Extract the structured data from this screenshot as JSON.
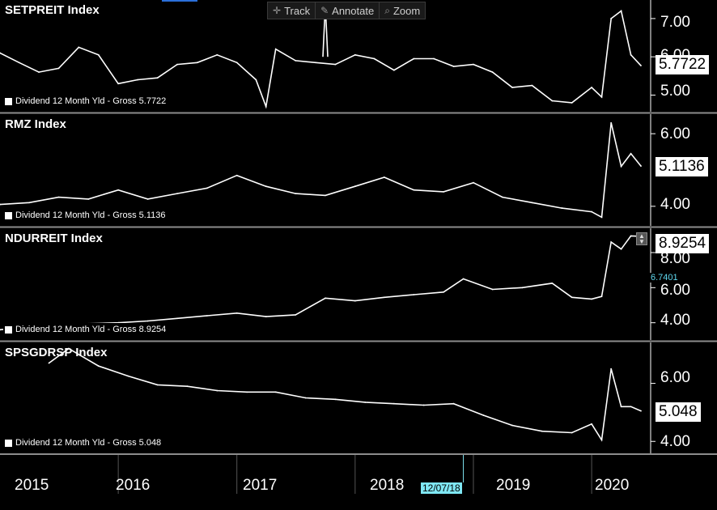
{
  "toolbar": {
    "track": {
      "label": "Track",
      "icon": "crosshair-icon"
    },
    "annotate": {
      "label": "Annotate",
      "icon": "pencil-icon"
    },
    "zoom": {
      "label": "Zoom",
      "icon": "magnifier-icon"
    }
  },
  "cursor": {
    "date": "12/07/18",
    "value": "6.7401"
  },
  "colors": {
    "background": "#000000",
    "line": "#ffffff",
    "cursor": "#7fe7f4",
    "divider": "#8c8c8c"
  },
  "chart_data": [
    {
      "type": "line",
      "title": "SETPREIT Index",
      "legend": "Dividend 12 Month Yld - Gross 5.7722",
      "last_value": "5.7722",
      "yticks": [
        "7.00",
        "6.00",
        "5.00"
      ],
      "ylim": [
        4.65,
        7.4
      ],
      "x": [
        "2015-01",
        "2015-03",
        "2015-05",
        "2015-07",
        "2015-09",
        "2015-11",
        "2016-01",
        "2016-03",
        "2016-05",
        "2016-07",
        "2016-09",
        "2016-11",
        "2017-01",
        "2017-03",
        "2017-04",
        "2017-05",
        "2017-07",
        "2017-09",
        "2017-11",
        "2018-01",
        "2018-03",
        "2018-05",
        "2018-07",
        "2018-09",
        "2018-11",
        "2019-01",
        "2019-03",
        "2019-05",
        "2019-07",
        "2019-09",
        "2019-11",
        "2020-01",
        "2020-02",
        "2020-03",
        "2020-04",
        "2020-05",
        "2020-06"
      ],
      "values": [
        6.1,
        5.85,
        5.6,
        5.7,
        6.25,
        6.05,
        5.3,
        5.4,
        5.45,
        5.8,
        5.85,
        6.05,
        5.85,
        5.4,
        4.7,
        6.2,
        5.9,
        5.85,
        5.8,
        6.05,
        5.95,
        5.65,
        5.95,
        5.95,
        5.75,
        5.8,
        5.6,
        5.2,
        5.25,
        4.85,
        4.8,
        5.2,
        4.95,
        7.0,
        7.2,
        6.05,
        5.77
      ],
      "annotations": [
        {
          "x": "2017-10",
          "value": 7.35
        }
      ]
    },
    {
      "type": "line",
      "title": "RMZ Index",
      "legend": "Dividend 12 Month Yld - Gross 5.1136",
      "last_value": "5.1136",
      "yticks": [
        "6.00",
        "4.00"
      ],
      "ylim": [
        3.55,
        6.45
      ],
      "x": [
        "2015-01",
        "2015-04",
        "2015-07",
        "2015-10",
        "2016-01",
        "2016-04",
        "2016-07",
        "2016-10",
        "2017-01",
        "2017-04",
        "2017-07",
        "2017-10",
        "2018-01",
        "2018-04",
        "2018-07",
        "2018-10",
        "2019-01",
        "2019-04",
        "2019-07",
        "2019-10",
        "2020-01",
        "2020-02",
        "2020-03",
        "2020-04",
        "2020-05",
        "2020-06"
      ],
      "values": [
        4.05,
        4.1,
        4.25,
        4.2,
        4.45,
        4.2,
        4.35,
        4.5,
        4.85,
        4.55,
        4.35,
        4.3,
        4.55,
        4.8,
        4.45,
        4.4,
        4.65,
        4.25,
        4.1,
        3.95,
        3.85,
        3.7,
        6.3,
        5.1,
        5.45,
        5.11
      ]
    },
    {
      "type": "line",
      "title": "NDURREIT Index",
      "legend": "Dividend 12 Month Yld - Gross 8.9254",
      "last_value": "8.9254",
      "yticks": [
        "8.00",
        "6.00",
        "4.00"
      ],
      "ylim": [
        3.2,
        9.2
      ],
      "x": [
        "2015-01",
        "2015-04",
        "2015-07",
        "2015-10",
        "2016-01",
        "2016-04",
        "2016-07",
        "2016-10",
        "2017-01",
        "2017-04",
        "2017-07",
        "2017-10",
        "2018-01",
        "2018-04",
        "2018-07",
        "2018-10",
        "2018-12",
        "2019-03",
        "2019-06",
        "2019-09",
        "2019-11",
        "2020-01",
        "2020-02",
        "2020-03",
        "2020-04",
        "2020-05",
        "2020-06"
      ],
      "values": [
        3.6,
        3.75,
        3.8,
        3.95,
        4.0,
        4.1,
        4.25,
        4.4,
        4.55,
        4.35,
        4.45,
        5.4,
        5.25,
        5.45,
        5.6,
        5.75,
        6.5,
        5.9,
        6.0,
        6.25,
        5.45,
        5.35,
        5.5,
        8.6,
        8.2,
        8.95,
        8.93
      ]
    },
    {
      "type": "line",
      "title": "SPSGDRSP Index",
      "legend": "Dividend 12 Month Yld - Gross 5.048",
      "last_value": "5.048",
      "yticks": [
        "6.00",
        "4.00"
      ],
      "ylim": [
        3.7,
        7.3
      ],
      "x": [
        "2015-06",
        "2015-08",
        "2015-11",
        "2016-02",
        "2016-05",
        "2016-08",
        "2016-11",
        "2017-02",
        "2017-05",
        "2017-08",
        "2017-11",
        "2018-02",
        "2018-05",
        "2018-08",
        "2018-11",
        "2019-02",
        "2019-05",
        "2019-08",
        "2019-11",
        "2020-01",
        "2020-02",
        "2020-03",
        "2020-04",
        "2020-05",
        "2020-06"
      ],
      "values": [
        6.7,
        7.2,
        6.6,
        6.25,
        5.95,
        5.9,
        5.75,
        5.7,
        5.7,
        5.5,
        5.45,
        5.35,
        5.3,
        5.25,
        5.3,
        4.9,
        4.55,
        4.35,
        4.3,
        4.6,
        4.05,
        6.5,
        5.2,
        5.2,
        5.05
      ]
    }
  ],
  "xaxis": {
    "labels": [
      "2015",
      "2016",
      "2017",
      "2018",
      "2019",
      "2020"
    ]
  }
}
